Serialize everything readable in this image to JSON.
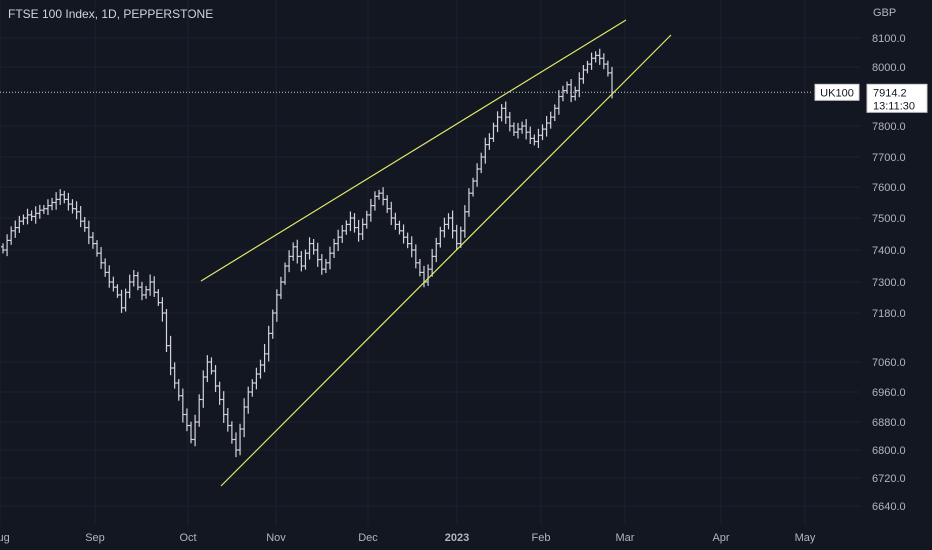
{
  "header": {
    "title": "FTSE 100 Index, 1D, PEPPERSTONE"
  },
  "colors": {
    "background": "#131722",
    "grid": "#1e2230",
    "bar": "#d1d4dc",
    "trendline": "#e3e86a",
    "axis_text": "#b2b5be",
    "price_label_bg": "#ffffff",
    "price_label_text": "#131722"
  },
  "chart_data": {
    "type": "ohlc",
    "symbol": "UK100",
    "currency_label": "GBP",
    "last_price": "7914.2",
    "countdown": "13:11:30",
    "y_ticks": [
      "8100.0",
      "8000.0",
      "7800.0",
      "7700.0",
      "7600.0",
      "7500.0",
      "7400.0",
      "7300.0",
      "7180.0",
      "7060.0",
      "6960.0",
      "6880.0",
      "6800.0",
      "6720.0",
      "6640.0"
    ],
    "x_ticks": [
      "Aug",
      "Sep",
      "Oct",
      "Nov",
      "Dec",
      "2023",
      "Feb",
      "Mar",
      "Apr",
      "May"
    ],
    "ylim": [
      6600,
      8180
    ],
    "series_closes": [
      7400,
      7430,
      7460,
      7470,
      7490,
      7500,
      7510,
      7505,
      7515,
      7525,
      7530,
      7540,
      7550,
      7560,
      7575,
      7560,
      7545,
      7530,
      7520,
      7490,
      7470,
      7440,
      7420,
      7390,
      7360,
      7330,
      7300,
      7280,
      7250,
      7200,
      7260,
      7300,
      7320,
      7280,
      7250,
      7270,
      7300,
      7260,
      7220,
      7180,
      7100,
      7040,
      6990,
      6950,
      6900,
      6870,
      6830,
      6880,
      6940,
      7010,
      7060,
      7030,
      6980,
      6940,
      6900,
      6870,
      6830,
      6800,
      6860,
      6920,
      6960,
      6990,
      7020,
      7050,
      7080,
      7130,
      7180,
      7250,
      7300,
      7350,
      7380,
      7410,
      7380,
      7350,
      7390,
      7420,
      7400,
      7370,
      7340,
      7360,
      7390,
      7420,
      7440,
      7460,
      7480,
      7500,
      7470,
      7450,
      7480,
      7510,
      7540,
      7570,
      7580,
      7560,
      7530,
      7500,
      7480,
      7460,
      7440,
      7420,
      7400,
      7360,
      7330,
      7300,
      7340,
      7380,
      7420,
      7460,
      7480,
      7500,
      7460,
      7420,
      7460,
      7520,
      7580,
      7620,
      7660,
      7700,
      7740,
      7760,
      7800,
      7830,
      7860,
      7830,
      7800,
      7780,
      7790,
      7800,
      7780,
      7760,
      7750,
      7770,
      7790,
      7810,
      7830,
      7860,
      7900,
      7920,
      7940,
      7900,
      7920,
      7960,
      7990,
      8010,
      8030,
      8040,
      8030,
      8010,
      7980,
      7914
    ]
  }
}
